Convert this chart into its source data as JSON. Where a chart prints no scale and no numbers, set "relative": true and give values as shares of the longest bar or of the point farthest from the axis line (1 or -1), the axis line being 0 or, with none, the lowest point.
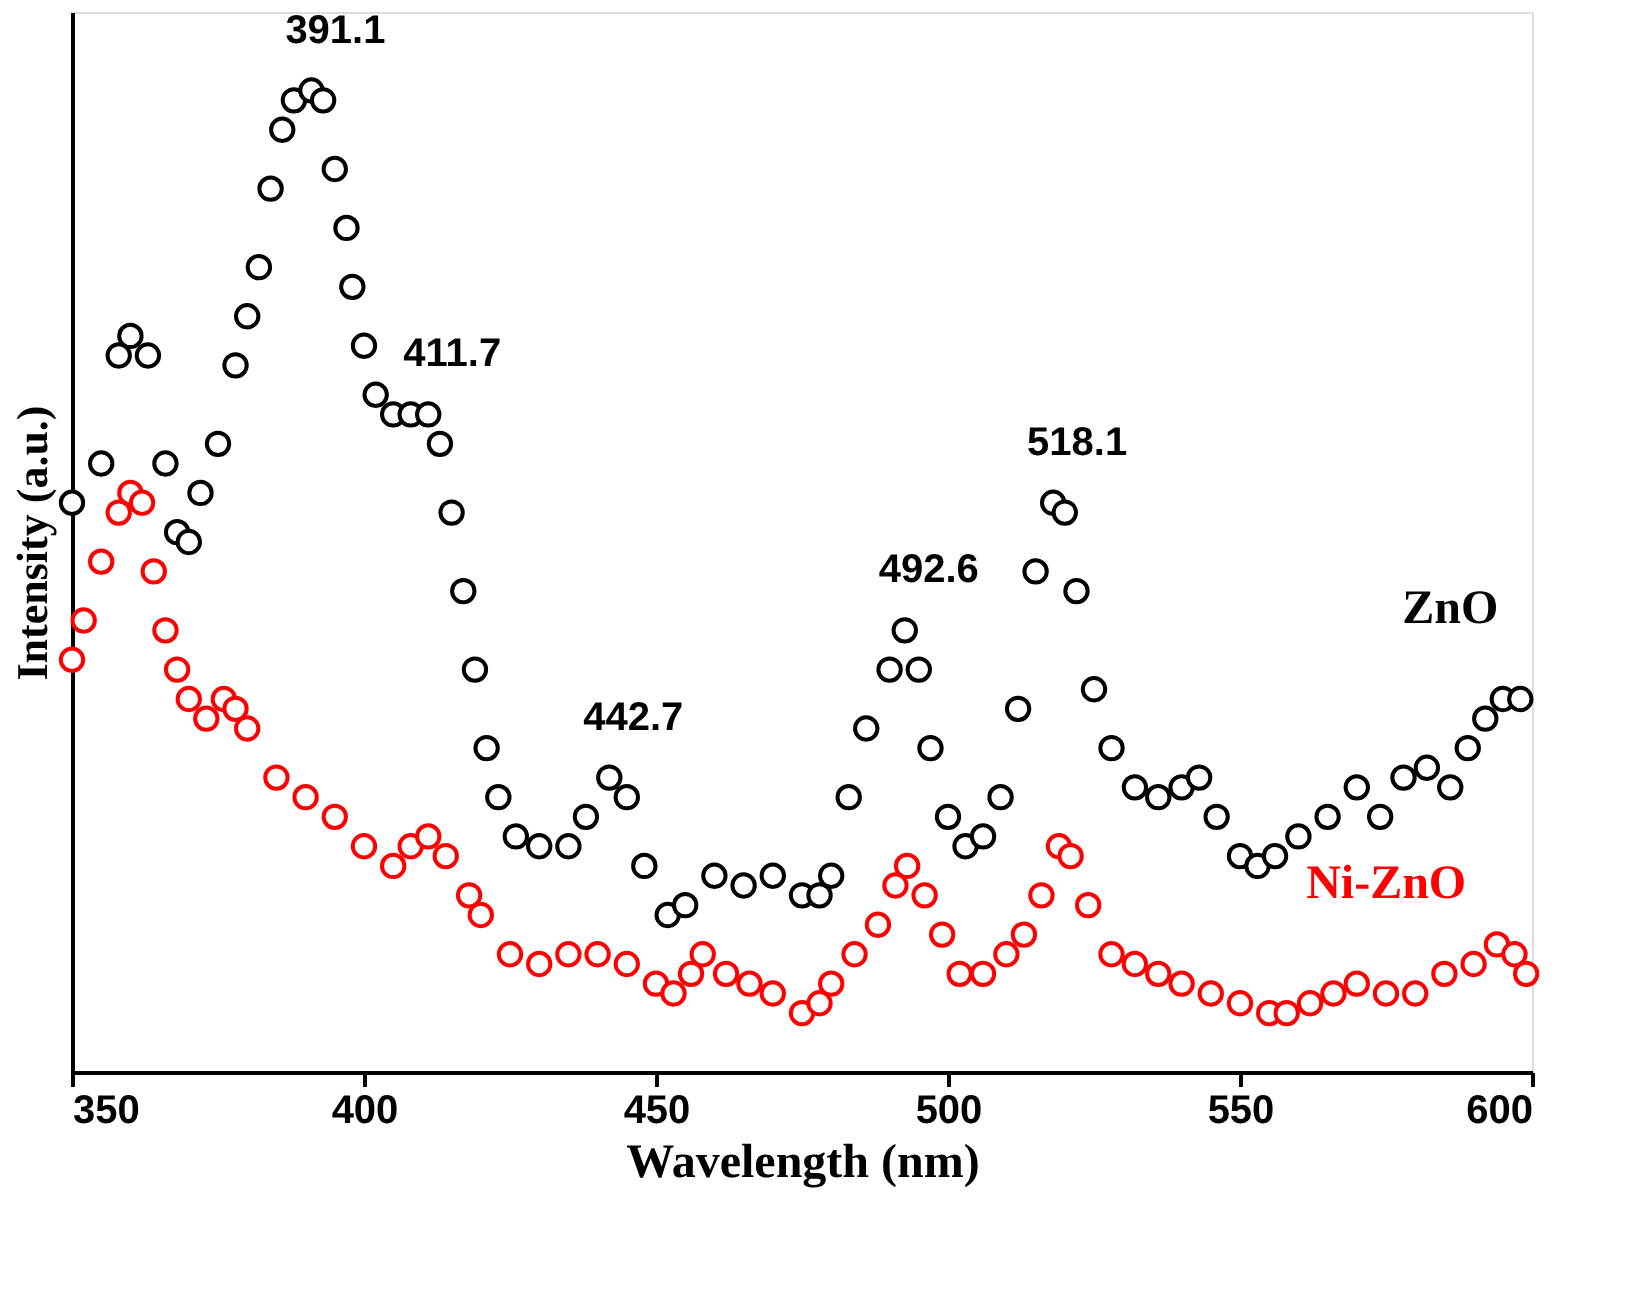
{
  "chart_data": {
    "type": "scatter",
    "relative": true,
    "xlabel": "Wavelength (nm)",
    "ylabel": "Intensity (a.u.)",
    "xlim": [
      350,
      600
    ],
    "xticks": [
      350,
      400,
      450,
      500,
      550,
      600
    ],
    "marker": "circle",
    "grid": false,
    "series": [
      {
        "name": "ZnO",
        "color": "#000000",
        "x": [
          350,
          355,
          358,
          360,
          363,
          366,
          368,
          370,
          372,
          375,
          378,
          380,
          382,
          384,
          386,
          388,
          391,
          393,
          395,
          397,
          398,
          400,
          402,
          405,
          408,
          411,
          413,
          415,
          417,
          419,
          421,
          423,
          426,
          430,
          435,
          438,
          442,
          445,
          448,
          452,
          455,
          460,
          465,
          470,
          475,
          478,
          480,
          483,
          486,
          490,
          492.6,
          495,
          497,
          500,
          503,
          506,
          509,
          512,
          515,
          518,
          520,
          522,
          525,
          528,
          532,
          536,
          540,
          543,
          546,
          550,
          553,
          556,
          560,
          565,
          570,
          574,
          578,
          582,
          586,
          589,
          592,
          595,
          598
        ],
        "values": [
          0.58,
          0.62,
          0.73,
          0.75,
          0.73,
          0.62,
          0.55,
          0.54,
          0.59,
          0.64,
          0.72,
          0.77,
          0.82,
          0.9,
          0.96,
          0.99,
          1.0,
          0.99,
          0.92,
          0.86,
          0.8,
          0.74,
          0.69,
          0.67,
          0.67,
          0.67,
          0.64,
          0.57,
          0.49,
          0.41,
          0.33,
          0.28,
          0.24,
          0.23,
          0.23,
          0.26,
          0.3,
          0.28,
          0.21,
          0.16,
          0.17,
          0.2,
          0.19,
          0.2,
          0.18,
          0.18,
          0.2,
          0.28,
          0.35,
          0.41,
          0.45,
          0.41,
          0.33,
          0.26,
          0.23,
          0.24,
          0.28,
          0.37,
          0.51,
          0.58,
          0.57,
          0.49,
          0.39,
          0.33,
          0.29,
          0.28,
          0.29,
          0.3,
          0.26,
          0.22,
          0.21,
          0.22,
          0.24,
          0.26,
          0.29,
          0.26,
          0.3,
          0.31,
          0.29,
          0.33,
          0.36,
          0.38,
          0.38
        ]
      },
      {
        "name": "Ni-ZnO",
        "color": "#ff0000",
        "x": [
          350,
          352,
          355,
          358,
          360,
          362,
          364,
          366,
          368,
          370,
          373,
          376,
          378,
          380,
          385,
          390,
          395,
          400,
          405,
          408,
          411,
          414,
          418,
          420,
          425,
          430,
          435,
          440,
          445,
          450,
          453,
          456,
          458,
          462,
          466,
          470,
          475,
          478,
          480,
          484,
          488,
          491,
          493,
          496,
          499,
          502,
          506,
          510,
          513,
          516,
          519,
          521,
          524,
          528,
          532,
          536,
          540,
          545,
          550,
          555,
          558,
          562,
          566,
          570,
          575,
          580,
          585,
          590,
          594,
          597,
          599
        ],
        "values": [
          0.42,
          0.46,
          0.52,
          0.57,
          0.59,
          0.58,
          0.51,
          0.45,
          0.41,
          0.38,
          0.36,
          0.38,
          0.37,
          0.35,
          0.3,
          0.28,
          0.26,
          0.23,
          0.21,
          0.23,
          0.24,
          0.22,
          0.18,
          0.16,
          0.12,
          0.11,
          0.12,
          0.12,
          0.11,
          0.09,
          0.08,
          0.1,
          0.12,
          0.1,
          0.09,
          0.08,
          0.06,
          0.07,
          0.09,
          0.12,
          0.15,
          0.19,
          0.21,
          0.18,
          0.14,
          0.1,
          0.1,
          0.12,
          0.14,
          0.18,
          0.23,
          0.22,
          0.17,
          0.12,
          0.11,
          0.1,
          0.09,
          0.08,
          0.07,
          0.06,
          0.06,
          0.07,
          0.08,
          0.09,
          0.08,
          0.08,
          0.1,
          0.11,
          0.13,
          0.12,
          0.1
        ]
      }
    ],
    "annotations": [
      {
        "text": "391.1",
        "x": 391,
        "y": 1.0
      },
      {
        "text": "411.7",
        "x": 411,
        "y": 0.67
      },
      {
        "text": "442.7",
        "x": 442,
        "y": 0.3
      },
      {
        "text": "492.6",
        "x": 492.6,
        "y": 0.45
      },
      {
        "text": "518.1",
        "x": 518,
        "y": 0.58
      }
    ]
  }
}
